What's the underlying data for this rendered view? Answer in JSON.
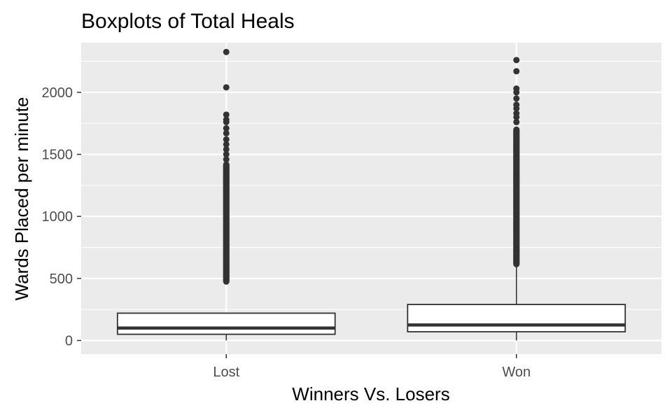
{
  "chart_data": {
    "type": "boxplot",
    "title": "Boxplots of Total Heals",
    "xlabel": "Winners Vs. Losers",
    "ylabel": "Wards Placed per minute",
    "ylim": [
      -110,
      2400
    ],
    "yticks": [
      0,
      500,
      1000,
      1500,
      2000
    ],
    "categories": [
      "Lost",
      "Won"
    ],
    "grid": true,
    "colors": {
      "panel": "#ebebeb",
      "grid": "#ffffff",
      "box_fill": "#ffffff",
      "box_line": "#333333",
      "outlier": "#333333"
    },
    "boxes": [
      {
        "category": "Lost",
        "whisker_low": 0,
        "q1": 50,
        "median": 100,
        "q3": 220,
        "whisker_high": 225,
        "outlier_range": [
          475,
          1420
        ],
        "outliers": [
          1460,
          1500,
          1540,
          1580,
          1620,
          1670,
          1710,
          1760,
          1780,
          1820,
          2040,
          2325
        ]
      },
      {
        "category": "Won",
        "whisker_low": 0,
        "q1": 70,
        "median": 125,
        "q3": 290,
        "whisker_high": 615,
        "outlier_range": [
          615,
          1700
        ],
        "outliers": [
          1760,
          1800,
          1830,
          1870,
          1900,
          1950,
          2000,
          2030,
          2170,
          2260
        ]
      }
    ]
  }
}
